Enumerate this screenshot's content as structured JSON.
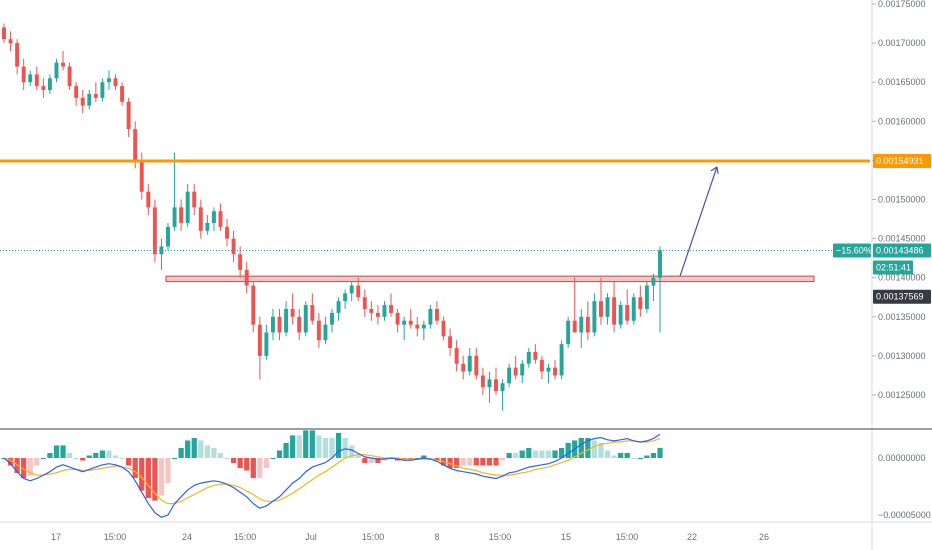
{
  "colors": {
    "up": "#26a69a",
    "down": "#ef5350",
    "resistance": "#ff9800",
    "support_fill": "#f3c6c6",
    "support_edge": "#b44f4f",
    "price_line": "#26a69a",
    "arrow": "#3f51b5",
    "macd_line": "#2962ff",
    "signal_line": "#f5b51f",
    "hist_up": "#26a69a",
    "hist_up_light": "#b2dfdb",
    "hist_down": "#ef5350",
    "hist_down_light": "#f8c3c2",
    "axis_text": "#6b6f7a",
    "badge_dark": "#363a45"
  },
  "chart_data": [
    {
      "type": "candlestick",
      "panel": "price",
      "y_axis_ticks": [
        "0.00175000",
        "0.00170000",
        "0.00165000",
        "0.00160000",
        "0.00155000",
        "0.00150000",
        "0.00145000",
        "0.00140000",
        "0.00135000",
        "0.00130000",
        "0.00125000"
      ],
      "x_axis_ticks": [
        "17",
        "15:00",
        "24",
        "15:00",
        "Jul",
        "15:00",
        "8",
        "15:00",
        "15",
        "15:00",
        "22",
        "26"
      ],
      "ylim": [
        0.0012,
        0.00176
      ],
      "candles": [
        [
          0.00172,
          0.001725,
          0.0017,
          0.001705
        ],
        [
          0.001705,
          0.001715,
          0.00169,
          0.0017
        ],
        [
          0.0017,
          0.001705,
          0.00166,
          0.00167
        ],
        [
          0.00167,
          0.00168,
          0.00164,
          0.00165
        ],
        [
          0.00165,
          0.001665,
          0.001645,
          0.00166
        ],
        [
          0.00166,
          0.00167,
          0.00164,
          0.001645
        ],
        [
          0.001645,
          0.001655,
          0.00163,
          0.00164
        ],
        [
          0.00164,
          0.00166,
          0.001635,
          0.001655
        ],
        [
          0.001655,
          0.00168,
          0.00165,
          0.001675
        ],
        [
          0.001675,
          0.00169,
          0.001665,
          0.00167
        ],
        [
          0.00167,
          0.001675,
          0.00164,
          0.001645
        ],
        [
          0.001645,
          0.00165,
          0.00162,
          0.00163
        ],
        [
          0.00163,
          0.00164,
          0.00161,
          0.00162
        ],
        [
          0.00162,
          0.00164,
          0.001615,
          0.001635
        ],
        [
          0.001635,
          0.00165,
          0.001625,
          0.00163
        ],
        [
          0.00163,
          0.001655,
          0.001625,
          0.00165
        ],
        [
          0.00165,
          0.001665,
          0.00164,
          0.001655
        ],
        [
          0.001655,
          0.00166,
          0.00164,
          0.001645
        ],
        [
          0.001645,
          0.00165,
          0.00162,
          0.001625
        ],
        [
          0.001625,
          0.00163,
          0.00158,
          0.00159
        ],
        [
          0.00159,
          0.0016,
          0.00154,
          0.00155
        ],
        [
          0.00155,
          0.00156,
          0.0015,
          0.00151
        ],
        [
          0.00151,
          0.00152,
          0.00148,
          0.00149
        ],
        [
          0.00149,
          0.0015,
          0.00142,
          0.00143
        ],
        [
          0.00143,
          0.00145,
          0.00141,
          0.00144
        ],
        [
          0.00144,
          0.00147,
          0.001435,
          0.001465
        ],
        [
          0.001465,
          0.00156,
          0.00146,
          0.00149
        ],
        [
          0.00149,
          0.0015,
          0.00146,
          0.00147
        ],
        [
          0.00147,
          0.00152,
          0.001465,
          0.00151
        ],
        [
          0.00151,
          0.00152,
          0.00148,
          0.00149
        ],
        [
          0.00149,
          0.0015,
          0.00145,
          0.00146
        ],
        [
          0.00146,
          0.00148,
          0.001455,
          0.00147
        ],
        [
          0.00147,
          0.00149,
          0.00146,
          0.001485
        ],
        [
          0.001485,
          0.001495,
          0.00146,
          0.001465
        ],
        [
          0.001465,
          0.001475,
          0.00144,
          0.00145
        ],
        [
          0.00145,
          0.00146,
          0.00142,
          0.00143
        ],
        [
          0.00143,
          0.00144,
          0.0014,
          0.00141
        ],
        [
          0.00141,
          0.00142,
          0.00138,
          0.00139
        ],
        [
          0.00139,
          0.001395,
          0.00133,
          0.00134
        ],
        [
          0.00134,
          0.00135,
          0.00127,
          0.0013
        ],
        [
          0.0013,
          0.00134,
          0.001295,
          0.00133
        ],
        [
          0.00133,
          0.00136,
          0.00132,
          0.00135
        ],
        [
          0.00135,
          0.00136,
          0.00132,
          0.00133
        ],
        [
          0.00133,
          0.00137,
          0.001325,
          0.00136
        ],
        [
          0.00136,
          0.00138,
          0.00134,
          0.00135
        ],
        [
          0.00135,
          0.00136,
          0.00132,
          0.00133
        ],
        [
          0.00133,
          0.00137,
          0.001325,
          0.001365
        ],
        [
          0.001365,
          0.00138,
          0.00134,
          0.001345
        ],
        [
          0.001345,
          0.001355,
          0.00131,
          0.00132
        ],
        [
          0.00132,
          0.00135,
          0.001315,
          0.00134
        ],
        [
          0.00134,
          0.00136,
          0.00133,
          0.001355
        ],
        [
          0.001355,
          0.001375,
          0.001345,
          0.00137
        ],
        [
          0.00137,
          0.001385,
          0.00136,
          0.00138
        ],
        [
          0.00138,
          0.001395,
          0.00137,
          0.00139
        ],
        [
          0.00139,
          0.0014,
          0.00137,
          0.001375
        ],
        [
          0.001375,
          0.001385,
          0.00135,
          0.00136
        ],
        [
          0.00136,
          0.00137,
          0.001345,
          0.001355
        ],
        [
          0.001355,
          0.001365,
          0.00134,
          0.00135
        ],
        [
          0.00135,
          0.00137,
          0.001345,
          0.001365
        ],
        [
          0.001365,
          0.00138,
          0.00135,
          0.001355
        ],
        [
          0.001355,
          0.00136,
          0.00133,
          0.00134
        ],
        [
          0.00134,
          0.00135,
          0.00132,
          0.001345
        ],
        [
          0.001345,
          0.00136,
          0.001335,
          0.00134
        ],
        [
          0.00134,
          0.00135,
          0.001325,
          0.001335
        ],
        [
          0.001335,
          0.001345,
          0.00132,
          0.00134
        ],
        [
          0.00134,
          0.001365,
          0.001335,
          0.00136
        ],
        [
          0.00136,
          0.00137,
          0.00134,
          0.001345
        ],
        [
          0.001345,
          0.00135,
          0.00132,
          0.001325
        ],
        [
          0.001325,
          0.001335,
          0.0013,
          0.00131
        ],
        [
          0.00131,
          0.00132,
          0.00128,
          0.00129
        ],
        [
          0.00129,
          0.0013,
          0.00127,
          0.00128
        ],
        [
          0.00128,
          0.00131,
          0.001275,
          0.0013
        ],
        [
          0.0013,
          0.00131,
          0.00127,
          0.001275
        ],
        [
          0.001275,
          0.001285,
          0.00125,
          0.00126
        ],
        [
          0.00126,
          0.00128,
          0.00124,
          0.00127
        ],
        [
          0.00127,
          0.001285,
          0.00125,
          0.001255
        ],
        [
          0.001255,
          0.00127,
          0.00123,
          0.001265
        ],
        [
          0.001265,
          0.00129,
          0.00126,
          0.001285
        ],
        [
          0.001285,
          0.0013,
          0.00127,
          0.001275
        ],
        [
          0.001275,
          0.001295,
          0.001265,
          0.00129
        ],
        [
          0.00129,
          0.00131,
          0.001285,
          0.001305
        ],
        [
          0.001305,
          0.001315,
          0.00129,
          0.001295
        ],
        [
          0.001295,
          0.0013,
          0.00127,
          0.00128
        ],
        [
          0.00128,
          0.00129,
          0.001265,
          0.001285
        ],
        [
          0.001285,
          0.001295,
          0.00127,
          0.001275
        ],
        [
          0.001275,
          0.00132,
          0.00127,
          0.001315
        ],
        [
          0.001315,
          0.00135,
          0.00131,
          0.001345
        ],
        [
          0.001345,
          0.0014,
          0.00133,
          0.00133
        ],
        [
          0.00133,
          0.00136,
          0.00131,
          0.00135
        ],
        [
          0.00135,
          0.00137,
          0.00132,
          0.00133
        ],
        [
          0.00133,
          0.00138,
          0.001325,
          0.00137
        ],
        [
          0.00137,
          0.0014,
          0.00134,
          0.00135
        ],
        [
          0.00135,
          0.00138,
          0.00134,
          0.001375
        ],
        [
          0.001375,
          0.001395,
          0.00133,
          0.00134
        ],
        [
          0.00134,
          0.00137,
          0.001335,
          0.001365
        ],
        [
          0.001365,
          0.001385,
          0.00134,
          0.001345
        ],
        [
          0.001345,
          0.00138,
          0.00134,
          0.001375
        ],
        [
          0.001375,
          0.00139,
          0.00135,
          0.00136
        ],
        [
          0.00136,
          0.001395,
          0.001355,
          0.00139
        ],
        [
          0.00139,
          0.001405,
          0.00137,
          0.0014
        ],
        [
          0.0014,
          0.00144,
          0.00133,
          0.001435
        ]
      ],
      "horizontal_levels": [
        {
          "price": 0.00154931,
          "label": "0.00154931"
        }
      ],
      "support_zone": [
        0.001395,
        0.001402
      ],
      "current_price": {
        "price": 0.00143486,
        "label": "0.00143486",
        "change": "−15.60%",
        "countdown": "02:51:41"
      },
      "crosshair_price": {
        "price": 0.00137569,
        "label": "0.00137569"
      },
      "arrow_target": 0.001552
    },
    {
      "type": "macd",
      "panel": "indicator",
      "y_axis_ticks": [
        "0.00000000",
        "−0.00005000"
      ],
      "ylim": [
        -5.8e-05,
        2.5e-05
      ],
      "macd": [
        0.0,
        -5e-06,
        -1.2e-05,
        -1.8e-05,
        -2e-05,
        -1.8e-05,
        -1.5e-05,
        -1.2e-05,
        -8e-06,
        -6e-06,
        -8e-06,
        -1e-05,
        -1.2e-05,
        -1e-05,
        -8e-06,
        -6e-06,
        -5e-06,
        -6e-06,
        -8e-06,
        -1.2e-05,
        -2e-05,
        -3e-05,
        -4e-05,
        -4.8e-05,
        -5.2e-05,
        -5e-05,
        -4e-05,
        -3.4e-05,
        -2.8e-05,
        -2.4e-05,
        -2.2e-05,
        -2.1e-05,
        -2e-05,
        -2.1e-05,
        -2.3e-05,
        -2.6e-05,
        -3e-05,
        -3.4e-05,
        -4e-05,
        -4.4e-05,
        -4.2e-05,
        -3.8e-05,
        -3.4e-05,
        -2.8e-05,
        -2.2e-05,
        -1.8e-05,
        -1.2e-05,
        -8e-06,
        -6e-06,
        -4e-06,
        0.0,
        6e-06,
        8e-06,
        7e-06,
        4e-06,
        1e-06,
        0.0,
        -1e-06,
        -1e-06,
        0.0,
        -1e-06,
        -2e-06,
        -2e-06,
        -1e-06,
        0.0,
        -1e-06,
        -3e-06,
        -6e-06,
        -9e-06,
        -1.1e-05,
        -1.2e-05,
        -1.3e-05,
        -1.4e-05,
        -1.6e-05,
        -1.7e-05,
        -1.8e-05,
        -1.6e-05,
        -1.3e-05,
        -1.2e-05,
        -1e-05,
        -8e-06,
        -7e-06,
        -6e-06,
        -5e-06,
        -3e-06,
        0.0,
        4e-06,
        8e-06,
        1.2e-05,
        1.5e-05,
        1.7e-05,
        1.8e-05,
        1.6e-05,
        1.5e-05,
        1.6e-05,
        1.7e-05,
        1.5e-05,
        1.4e-05,
        1.5e-05,
        1.7e-05,
        2.1e-05
      ],
      "signal": [
        0.0,
        -2e-06,
        -6e-06,
        -1e-05,
        -1.3e-05,
        -1.5e-05,
        -1.5e-05,
        -1.4e-05,
        -1.3e-05,
        -1.1e-05,
        -1e-05,
        -1e-05,
        -1.1e-05,
        -1.1e-05,
        -1e-05,
        -9e-06,
        -8e-06,
        -7e-06,
        -8e-06,
        -9e-06,
        -1.2e-05,
        -1.7e-05,
        -2.4e-05,
        -3.1e-05,
        -3.7e-05,
        -4e-05,
        -4e-05,
        -3.8e-05,
        -3.5e-05,
        -3.2e-05,
        -2.9e-05,
        -2.6e-05,
        -2.4e-05,
        -2.3e-05,
        -2.3e-05,
        -2.4e-05,
        -2.6e-05,
        -2.9e-05,
        -3.2e-05,
        -3.6e-05,
        -3.8e-05,
        -3.8e-05,
        -3.7e-05,
        -3.4e-05,
        -3.1e-05,
        -2.7e-05,
        -2.3e-05,
        -1.9e-05,
        -1.5e-05,
        -1.2e-05,
        -8e-06,
        -4e-06,
        0.0,
        2e-06,
        3e-06,
        3e-06,
        2e-06,
        1e-06,
        0.0,
        0.0,
        0.0,
        -1e-06,
        -1e-06,
        -1e-06,
        -1e-06,
        -1e-06,
        -2e-06,
        -3e-06,
        -5e-06,
        -7e-06,
        -9e-06,
        -1e-05,
        -1.1e-05,
        -1.3e-05,
        -1.4e-05,
        -1.5e-05,
        -1.5e-05,
        -1.5e-05,
        -1.4e-05,
        -1.3e-05,
        -1.2e-05,
        -1e-05,
        -9e-06,
        -8e-06,
        -6e-06,
        -4e-06,
        -2e-06,
        1e-06,
        4e-06,
        7e-06,
        1e-05,
        1.2e-05,
        1.3e-05,
        1.4e-05,
        1.4e-05,
        1.5e-05,
        1.5e-05,
        1.4e-05,
        1.4e-05,
        1.5e-05,
        1.7e-05
      ]
    }
  ]
}
